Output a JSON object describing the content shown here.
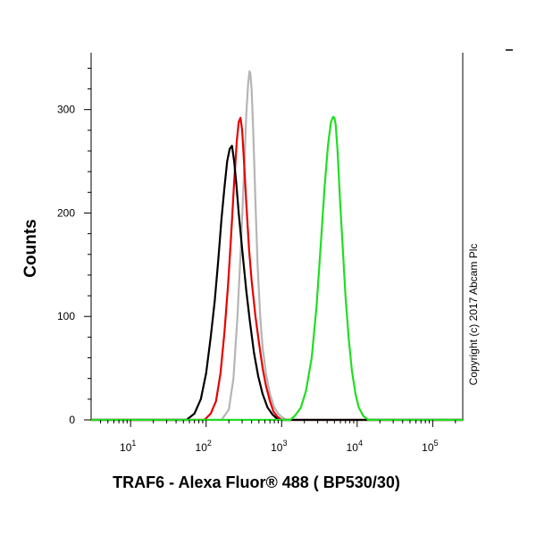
{
  "chart_data": {
    "type": "line",
    "xlabel": "TRAF6 - Alexa Fluor® 488 ( BP530/30)",
    "ylabel": "Counts",
    "xscale": "log",
    "xlim": [
      3.0,
      250000
    ],
    "ylim": [
      0,
      355
    ],
    "x_ticks": [
      {
        "value": 10,
        "base": "10",
        "exp": "1"
      },
      {
        "value": 100,
        "base": "10",
        "exp": "2"
      },
      {
        "value": 1000,
        "base": "10",
        "exp": "3"
      },
      {
        "value": 10000,
        "base": "10",
        "exp": "4"
      },
      {
        "value": 100000,
        "base": "10",
        "exp": "5"
      }
    ],
    "y_ticks": [
      {
        "value": 0,
        "label": "0"
      },
      {
        "value": 100,
        "label": "100"
      },
      {
        "value": 200,
        "label": "200"
      },
      {
        "value": 300,
        "label": "300"
      }
    ],
    "grid": false,
    "legend": "none",
    "annotation": "Copyright (c) 2017 Abcam Plc",
    "series": [
      {
        "color": "#b5b5b5",
        "x": [
          3,
          160,
          200,
          230,
          260,
          290,
          320,
          340,
          360,
          375,
          385,
          400,
          420,
          450,
          480,
          520,
          560,
          620,
          700,
          800,
          900,
          1000,
          1150,
          250000
        ],
        "y": [
          0,
          0,
          10,
          40,
          100,
          170,
          245,
          295,
          325,
          337,
          335,
          320,
          280,
          210,
          150,
          100,
          70,
          45,
          25,
          12,
          6,
          3,
          0,
          0
        ]
      },
      {
        "color": "#e60000",
        "x": [
          3,
          95,
          115,
          135,
          155,
          175,
          195,
          215,
          235,
          255,
          270,
          285,
          300,
          320,
          340,
          370,
          400,
          450,
          500,
          560,
          620,
          700,
          780,
          880,
          1000,
          250000
        ],
        "y": [
          0,
          0,
          6,
          18,
          45,
          85,
          130,
          180,
          230,
          270,
          288,
          292,
          280,
          245,
          210,
          165,
          135,
          100,
          75,
          50,
          33,
          18,
          8,
          3,
          0,
          0
        ]
      },
      {
        "color": "#000000",
        "x": [
          3,
          55,
          70,
          85,
          100,
          115,
          130,
          145,
          160,
          175,
          190,
          205,
          220,
          235,
          250,
          270,
          300,
          340,
          380,
          430,
          490,
          560,
          650,
          760,
          900,
          250000
        ],
        "y": [
          0,
          0,
          6,
          20,
          45,
          80,
          115,
          155,
          195,
          225,
          250,
          262,
          265,
          250,
          230,
          200,
          165,
          125,
          95,
          65,
          42,
          25,
          12,
          5,
          0,
          0
        ]
      },
      {
        "color": "#22dd22",
        "x": [
          3,
          1300,
          1500,
          1800,
          2100,
          2500,
          2900,
          3300,
          3700,
          4100,
          4500,
          4800,
          5000,
          5200,
          5500,
          5900,
          6400,
          7000,
          7700,
          8500,
          9500,
          10500,
          12000,
          14000,
          250000
        ],
        "y": [
          0,
          0,
          4,
          12,
          28,
          60,
          110,
          170,
          225,
          265,
          288,
          293,
          292,
          285,
          260,
          215,
          170,
          120,
          80,
          48,
          25,
          12,
          4,
          0,
          0
        ]
      }
    ]
  }
}
